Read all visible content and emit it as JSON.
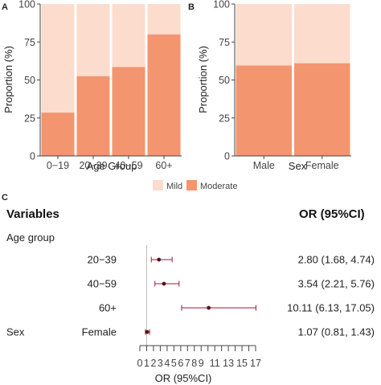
{
  "colors": {
    "mild": "#fbdccd",
    "moderate": "#f3956f",
    "forest_line": "#9b1b3a",
    "forest_point": "#5a0f1c",
    "axis": "#444444"
  },
  "chart_data": [
    {
      "panel": "A",
      "type": "bar",
      "stacked": true,
      "categories": [
        "0−19",
        "20−39",
        "40−59",
        "60+"
      ],
      "series": [
        {
          "name": "Moderate",
          "values": [
            28.5,
            52.5,
            58.5,
            80
          ]
        },
        {
          "name": "Mild",
          "values": [
            71.5,
            47.5,
            41.5,
            20
          ]
        }
      ],
      "xlabel": "Age Group",
      "ylabel": "Proportion (%)",
      "ylim": [
        0,
        100
      ],
      "yticks": [
        "0",
        "25",
        "50",
        "75",
        "100"
      ]
    },
    {
      "panel": "B",
      "type": "bar",
      "stacked": true,
      "categories": [
        "Male",
        "Female"
      ],
      "series": [
        {
          "name": "Moderate",
          "values": [
            59.5,
            61
          ]
        },
        {
          "name": "Mild",
          "values": [
            40.5,
            39
          ]
        }
      ],
      "xlabel": "Sex",
      "ylabel": "Proportion (%)",
      "ylim": [
        0,
        100
      ],
      "yticks": [
        "0",
        "25",
        "50",
        "75",
        "100"
      ]
    },
    {
      "panel": "C",
      "type": "forest",
      "header_variables": "Variables",
      "header_or": "OR (95%CI)",
      "group_label": "Age group",
      "rows": [
        {
          "group": "",
          "level": "20−39",
          "or": 2.8,
          "lo": 1.68,
          "hi": 4.74,
          "label": "2.80 (1.68, 4.74)"
        },
        {
          "group": "",
          "level": "40−59",
          "or": 3.54,
          "lo": 2.21,
          "hi": 5.76,
          "label": "3.54 (2.21, 5.76)"
        },
        {
          "group": "",
          "level": "60+",
          "or": 10.11,
          "lo": 6.13,
          "hi": 17.05,
          "label": "10.11 (6.13, 17.05)"
        },
        {
          "group": "Sex",
          "level": "Female",
          "or": 1.07,
          "lo": 0.81,
          "hi": 1.43,
          "label": "1.07 (0.81, 1.43)"
        }
      ],
      "xlabel": "OR (95%CI)",
      "xlim": [
        0,
        17
      ],
      "reference_line": 1,
      "xtick_labels": [
        {
          "v": 0,
          "t": "0"
        },
        {
          "v": 1,
          "t": "1"
        },
        {
          "v": 2,
          "t": "2"
        },
        {
          "v": 3,
          "t": "3"
        },
        {
          "v": 4,
          "t": "4"
        },
        {
          "v": 5,
          "t": "5"
        },
        {
          "v": 6,
          "t": "6"
        },
        {
          "v": 7,
          "t": "7"
        },
        {
          "v": 8,
          "t": "8"
        },
        {
          "v": 9,
          "t": "9"
        },
        {
          "v": 11,
          "t": "11"
        },
        {
          "v": 13,
          "t": "13"
        },
        {
          "v": 15,
          "t": "15"
        },
        {
          "v": 17,
          "t": "17"
        }
      ]
    }
  ],
  "legend": [
    {
      "name": "Mild",
      "color": "#fbdccd"
    },
    {
      "name": "Moderate",
      "color": "#f3956f"
    }
  ]
}
